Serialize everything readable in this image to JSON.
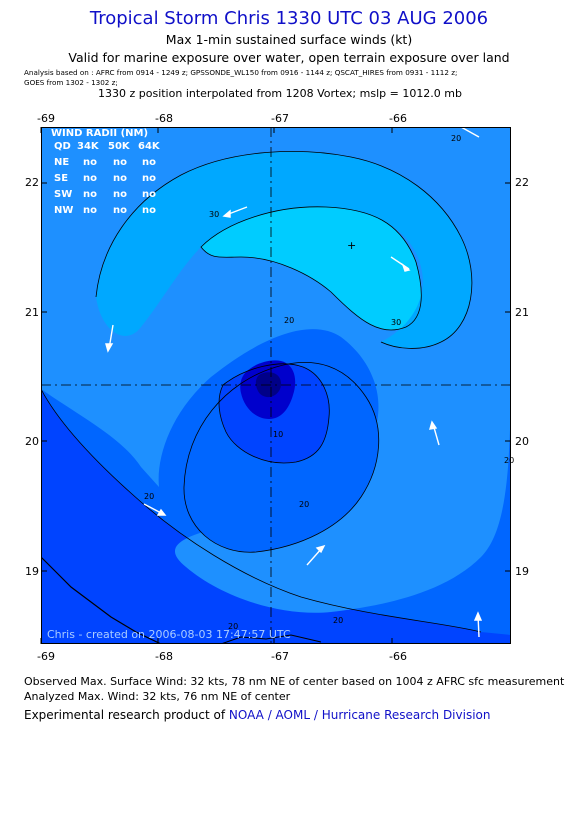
{
  "header": {
    "title": "Tropical Storm Chris 1330 UTC 03 AUG 2006",
    "subtitle1": "Max 1-min sustained surface winds (kt)",
    "subtitle2": "Valid for marine exposure over water, open terrain exposure over land",
    "analysis_line1": "Analysis based on : AFRC from 0914 - 1249 z;  GPSSONDE_WL150 from 0916 - 1144 z;  QSCAT_HIRES from 0931 - 1112 z;",
    "analysis_line2": "GOES from 1302 - 1302 z;",
    "position_line": "1330 z position interpolated from 1208 Vortex; mslp = 1012.0 mb"
  },
  "axes": {
    "lon_ticks": [
      "-69",
      "-68",
      "-67",
      "-66"
    ],
    "lat_ticks": [
      "22",
      "21",
      "20",
      "19"
    ]
  },
  "wind_radii": {
    "title": "WIND RADII (NM)",
    "header": [
      "QD",
      "34K",
      "50K",
      "64K"
    ],
    "rows": [
      {
        "quad": "NE",
        "v34": "no",
        "v50": "no",
        "v64": "no"
      },
      {
        "quad": "SE",
        "v34": "no",
        "v50": "no",
        "v64": "no"
      },
      {
        "quad": "SW",
        "v34": "no",
        "v50": "no",
        "v64": "no"
      },
      {
        "quad": "NW",
        "v34": "no",
        "v50": "no",
        "v64": "no"
      }
    ]
  },
  "contour_labels": {
    "c30": "30",
    "c20": "20",
    "c10": "10"
  },
  "credit": "Chris  -  created on 2006-08-03 17:47:57 UTC",
  "footer": {
    "observed": "Observed Max. Surface Wind: 32 kts, 78 nm NE of center based on 1004 z AFRC sfc measurement",
    "analyzed": "Analyzed Max. Wind: 32 kts, 76 nm NE of center",
    "product_prefix": "Experimental research product of ",
    "product_link": "NOAA / AOML / Hurricane Research Division"
  },
  "colors": {
    "level_lt10": "#0044ff",
    "level_10_20": "#0066ff",
    "level_20_30": "#1e90ff",
    "level_30_plus": "#00ccff",
    "level_25_30": "#00a8ff",
    "core_dark": "#0000cc",
    "title": "#1010c8",
    "arrow": "#ffffff"
  }
}
